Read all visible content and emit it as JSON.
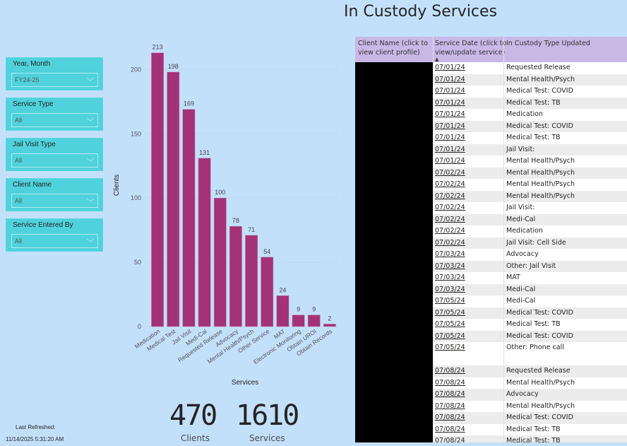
{
  "page": {
    "title": "In Custody Services"
  },
  "slicers": [
    {
      "label": "Year, Month",
      "value": "FY24-25"
    },
    {
      "label": "Service Type",
      "value": "All"
    },
    {
      "label": "Jail Visit Type",
      "value": "All"
    },
    {
      "label": "Client Name",
      "value": "All"
    },
    {
      "label": "Service Entered By",
      "value": "All"
    }
  ],
  "kpis": {
    "clients": {
      "value": "470",
      "label": "Clients"
    },
    "services": {
      "value": "1610",
      "label": "Services"
    }
  },
  "refresh": {
    "label": "Last Refreshed:",
    "value": "11/14/2025 5:31:20 AM"
  },
  "chart_data": {
    "type": "bar",
    "title": "",
    "xlabel": "Services",
    "ylabel": "Clients",
    "ylim": [
      0,
      220
    ],
    "yticks": [
      0,
      50,
      100,
      150,
      200
    ],
    "grid": true,
    "bar_color": "#a33376",
    "categories": [
      "Medication",
      "Medical Test",
      "Jail Visit",
      "Medi-Cal",
      "Requested Release",
      "Advocacy",
      "Mental Health/Psych",
      "Other Service",
      "MAT",
      "Electronic Monitoring",
      "Obtain UROI",
      "Obtain Records"
    ],
    "values": [
      213,
      198,
      169,
      131,
      100,
      78,
      71,
      54,
      24,
      9,
      9,
      2
    ]
  },
  "table": {
    "headers": [
      {
        "line1": "Client Name (click to",
        "line2": "view client profile)"
      },
      {
        "line1": "Service Date (click to",
        "line2": "view/update service)"
      },
      {
        "line1": "In Custody Type Updated",
        "line2": ""
      }
    ],
    "rows": [
      {
        "date": "07/01/24",
        "type": "Requested Release"
      },
      {
        "date": "07/01/24",
        "type": "Mental Health/Psych"
      },
      {
        "date": "07/01/24",
        "type": "Medical Test: COVID"
      },
      {
        "date": "07/01/24",
        "type": "Medical Test: TB"
      },
      {
        "date": "07/01/24",
        "type": "Medication"
      },
      {
        "date": "07/01/24",
        "type": "Medical Test: COVID"
      },
      {
        "date": "07/01/24",
        "type": "Medical Test: TB"
      },
      {
        "date": "07/01/24",
        "type": "Jail Visit:"
      },
      {
        "date": "07/01/24",
        "type": "Mental Health/Psych"
      },
      {
        "date": "07/02/24",
        "type": "Mental Health/Psych"
      },
      {
        "date": "07/02/24",
        "type": "Mental Health/Psych"
      },
      {
        "date": "07/02/24",
        "type": "Mental Health/Psych"
      },
      {
        "date": "07/02/24",
        "type": "Jail Visit:"
      },
      {
        "date": "07/02/24",
        "type": "Medi-Cal"
      },
      {
        "date": "07/02/24",
        "type": "Medication"
      },
      {
        "date": "07/02/24",
        "type": "Jail Visit: Cell Side"
      },
      {
        "date": "07/03/24",
        "type": "Advocacy"
      },
      {
        "date": "07/03/24",
        "type": "Other: Jail Visit"
      },
      {
        "date": "07/03/24",
        "type": "MAT"
      },
      {
        "date": "07/03/24",
        "type": "Medi-Cal"
      },
      {
        "date": "07/05/24",
        "type": "Medi-Cal"
      },
      {
        "date": "07/05/24",
        "type": "Medical Test: COVID"
      },
      {
        "date": "07/05/24",
        "type": "Medical Test: TB"
      },
      {
        "date": "07/05/24",
        "type": "Medical Test: COVID"
      },
      {
        "date": "07/05/24",
        "type": "Other: Phone call"
      },
      {
        "date": "07/08/24",
        "type": "Requested Release"
      },
      {
        "date": "07/08/24",
        "type": "Mental Health/Psych"
      },
      {
        "date": "07/08/24",
        "type": "Advocacy"
      },
      {
        "date": "07/08/24",
        "type": "Mental Health/Psych"
      },
      {
        "date": "07/08/24",
        "type": "Medical Test: COVID"
      },
      {
        "date": "07/08/24",
        "type": "Medical Test: TB"
      },
      {
        "date": "07/08/24",
        "type": "Medical Test: TB"
      }
    ]
  }
}
